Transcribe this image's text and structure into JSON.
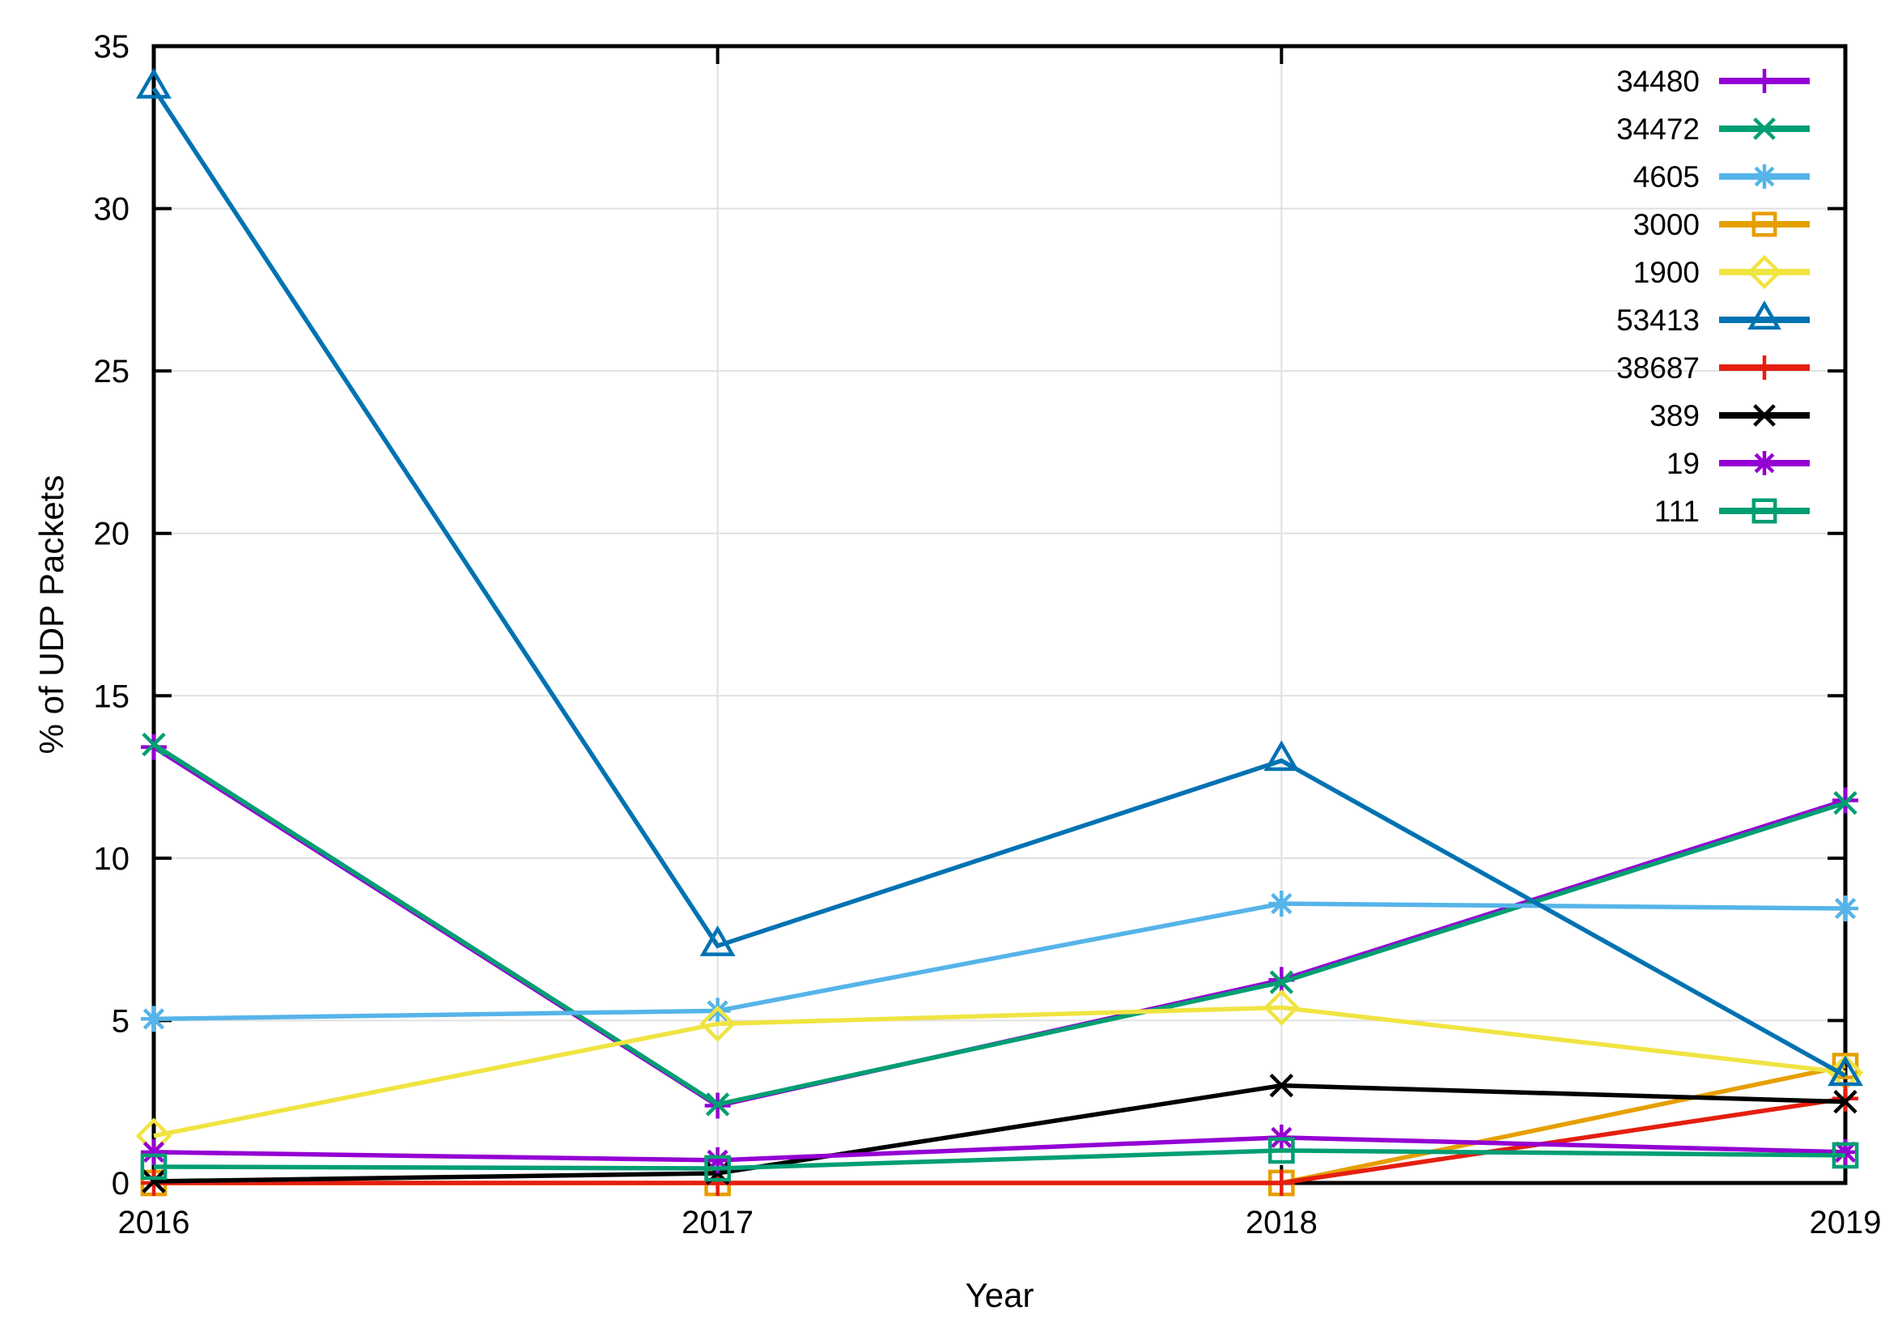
{
  "chart_data": {
    "type": "line",
    "title": "",
    "xlabel": "Year",
    "ylabel": "% of UDP Packets",
    "x": [
      2016,
      2017,
      2018,
      2019
    ],
    "xlim": [
      2016,
      2019
    ],
    "ylim": [
      0,
      35
    ],
    "xticks": [
      2016,
      2017,
      2018,
      2019
    ],
    "yticks": [
      0,
      5,
      10,
      15,
      20,
      25,
      30,
      35
    ],
    "grid": true,
    "background_color": "#ffffff",
    "grid_color": "#e0e0e0",
    "border_color": "#000000",
    "legend_position": "top-right-inside",
    "series": [
      {
        "name": "34480",
        "color": "#9400d3",
        "marker": "plus",
        "values": [
          13.42,
          2.38,
          6.25,
          11.78
        ]
      },
      {
        "name": "34472",
        "color": "#009e73",
        "marker": "cross",
        "values": [
          13.5,
          2.42,
          6.18,
          11.7
        ]
      },
      {
        "name": "4605",
        "color": "#56b4e9",
        "marker": "asterisk",
        "values": [
          5.05,
          5.3,
          8.6,
          8.45
        ]
      },
      {
        "name": "3000",
        "color": "#e69f00",
        "marker": "square",
        "values": [
          0.0,
          0.0,
          0.0,
          3.6
        ]
      },
      {
        "name": "1900",
        "color": "#f0e442",
        "marker": "diamond",
        "values": [
          1.45,
          4.9,
          5.4,
          3.4
        ]
      },
      {
        "name": "53413",
        "color": "#0072b2",
        "marker": "triangle",
        "values": [
          33.7,
          7.3,
          13.0,
          3.3
        ]
      },
      {
        "name": "38687",
        "color": "#e51e10",
        "marker": "plus",
        "values": [
          0.0,
          0.0,
          0.0,
          2.6
        ]
      },
      {
        "name": "389",
        "color": "#000000",
        "marker": "cross",
        "values": [
          0.05,
          0.3,
          3.0,
          2.5
        ]
      },
      {
        "name": "19",
        "color": "#9400d3",
        "marker": "asterisk",
        "values": [
          0.95,
          0.7,
          1.4,
          0.95
        ]
      },
      {
        "name": "111",
        "color": "#009e73",
        "marker": "square",
        "values": [
          0.5,
          0.45,
          1.0,
          0.85
        ]
      }
    ]
  }
}
